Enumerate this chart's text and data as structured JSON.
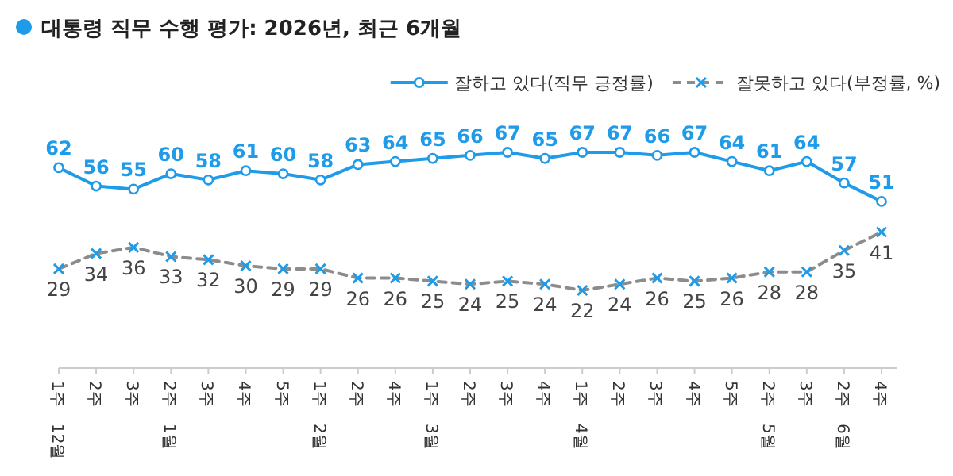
{
  "chart_data": {
    "type": "line",
    "title": "대통령 직무 수행 평가: 2026년, 최근 6개월",
    "categories": [
      "12월 1주",
      "2주",
      "3주",
      "1월 2주",
      "3주",
      "4주",
      "5주",
      "2월 1주",
      "2주",
      "4주",
      "3월 1주",
      "2주",
      "3주",
      "4주",
      "4월 1주",
      "2주",
      "3주",
      "4주",
      "5주",
      "5월 2주",
      "3주",
      "6월 2주",
      "4주"
    ],
    "series": [
      {
        "name": "잘하고 있다(직무 긍정률)",
        "color": "#1e9be9",
        "marker": "circle",
        "line_style": "solid",
        "values": [
          62,
          56,
          55,
          60,
          58,
          61,
          60,
          58,
          63,
          64,
          65,
          66,
          67,
          65,
          67,
          67,
          66,
          67,
          64,
          61,
          64,
          57,
          51
        ]
      },
      {
        "name": "잘못하고 있다(부정률, %)",
        "color": "#8c8c8c",
        "marker": "cross",
        "line_style": "dashed",
        "values": [
          29,
          34,
          36,
          33,
          32,
          30,
          29,
          29,
          26,
          26,
          25,
          24,
          25,
          24,
          22,
          24,
          26,
          25,
          26,
          28,
          28,
          35,
          41
        ]
      }
    ],
    "data_labels": true,
    "legend": "top right"
  }
}
